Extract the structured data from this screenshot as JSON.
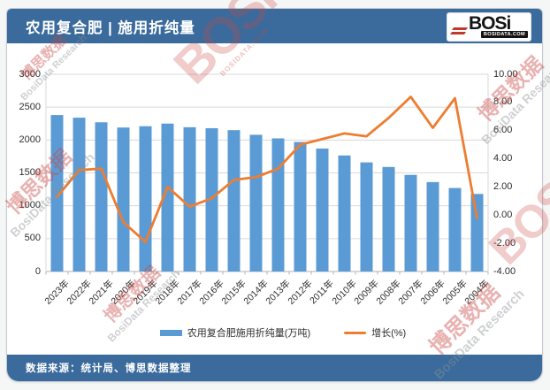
{
  "header": {
    "title": "农用复合肥 | 施用折纯量",
    "logo_text": "BOSi",
    "logo_sub": "BOSIDATA.COM"
  },
  "footer": {
    "source": "数据来源：统计局、博思数据整理"
  },
  "legend": {
    "bar_label": "农用复合肥施用折纯量(万吨)",
    "line_label": "增长(%)"
  },
  "watermark": {
    "logo_text": "BOSi",
    "logo_sub": "BOSIDATA.COM",
    "cn": "博思数据",
    "en": "BosiData Research"
  },
  "colors": {
    "header_blue": "#3a6b9c",
    "bar": "#5b9bd5",
    "line": "#ed7d31",
    "grid": "#d9d9d9",
    "axis": "#b3b3b3",
    "tick_text": "#2e2e2e"
  },
  "chart_data": {
    "type": "bar",
    "subtype": "bar+line combo, dual axis",
    "title": "农用复合肥 | 施用折纯量",
    "categories": [
      "2023年",
      "2022年",
      "2021年",
      "2020年",
      "2019年",
      "2018年",
      "2017年",
      "2016年",
      "2015年",
      "2014年",
      "2013年",
      "2012年",
      "2011年",
      "2010年",
      "2009年",
      "2008年",
      "2007年",
      "2006年",
      "2005年",
      "2004年"
    ],
    "series": [
      {
        "name": "农用复合肥施用折纯量(万吨)",
        "type": "bar",
        "axis": "left",
        "values": [
          2380,
          2340,
          2270,
          2190,
          2210,
          2250,
          2195,
          2180,
          2150,
          2080,
          2025,
          1970,
          1870,
          1765,
          1660,
          1590,
          1470,
          1360,
          1270,
          1180
        ]
      },
      {
        "name": "增长(%)",
        "type": "line",
        "axis": "right",
        "values": [
          1.3,
          3.2,
          3.3,
          -0.5,
          -1.9,
          2.0,
          0.6,
          1.2,
          2.5,
          2.7,
          3.3,
          5.0,
          5.4,
          5.8,
          5.6,
          6.9,
          8.4,
          6.2,
          8.3,
          -0.2
        ]
      }
    ],
    "left_axis": {
      "min": 0,
      "max": 3000,
      "step": 500,
      "ticks": [
        "3000",
        "2500",
        "2000",
        "1500",
        "1000",
        "500",
        "0"
      ]
    },
    "right_axis": {
      "min": -4,
      "max": 10,
      "step": 2,
      "ticks": [
        "10.00",
        "8.00",
        "6.00",
        "4.00",
        "2.00",
        "0.00",
        "-2.00",
        "-4.00"
      ]
    },
    "grid": true,
    "legend_position": "bottom",
    "x_label_rotation": -45
  }
}
